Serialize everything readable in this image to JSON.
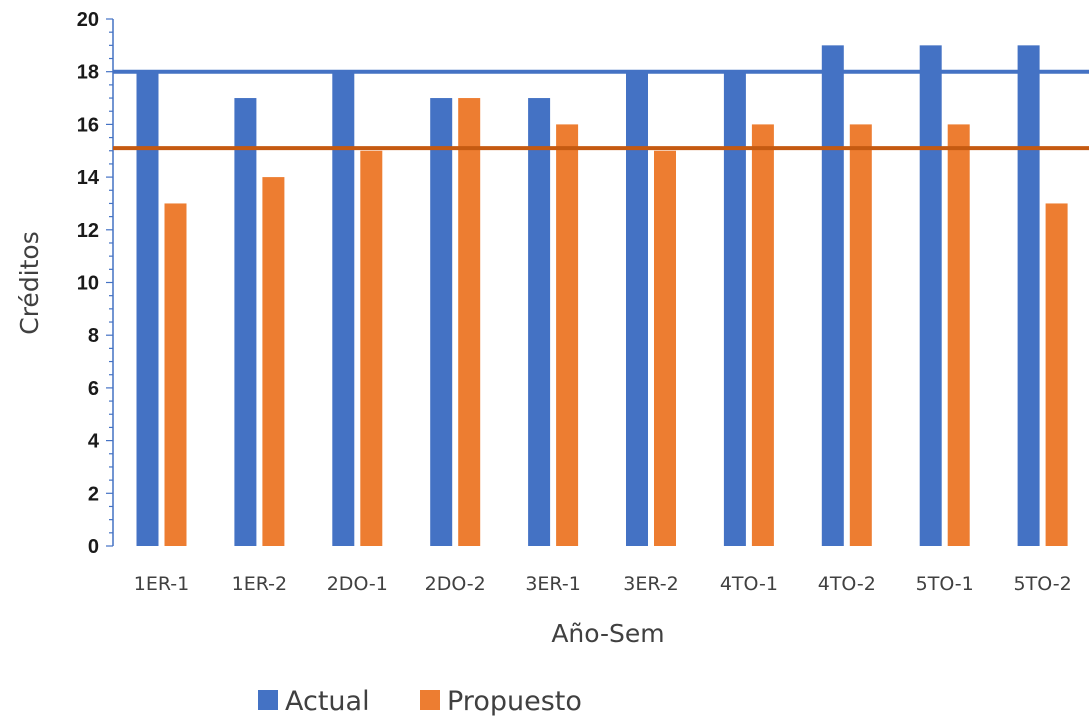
{
  "chart_data": {
    "type": "bar",
    "title": "",
    "xlabel": "Año-Sem",
    "ylabel": "Créditos",
    "categories": [
      "1ER-1",
      "1ER-2",
      "2DO-1",
      "2DO-2",
      "3ER-1",
      "3ER-2",
      "4TO-1",
      "4TO-2",
      "5TO-1",
      "5TO-2"
    ],
    "series": [
      {
        "name": "Actual",
        "color": "#4472C4",
        "values": [
          18,
          17,
          18,
          17,
          17,
          18,
          18,
          19,
          19,
          19
        ]
      },
      {
        "name": "Propuesto",
        "color": "#ED7D31",
        "values": [
          13,
          14,
          15,
          17,
          16,
          15,
          16,
          16,
          16,
          13
        ]
      }
    ],
    "reference_lines": [
      {
        "value": 18,
        "color": "#4472C4"
      },
      {
        "value": 15.1,
        "color": "#C55A11"
      }
    ],
    "ylim": [
      0,
      20
    ],
    "yticks": [
      0,
      2,
      4,
      6,
      8,
      10,
      12,
      14,
      16,
      18,
      20
    ],
    "grid": false,
    "legend_position": "bottom"
  }
}
